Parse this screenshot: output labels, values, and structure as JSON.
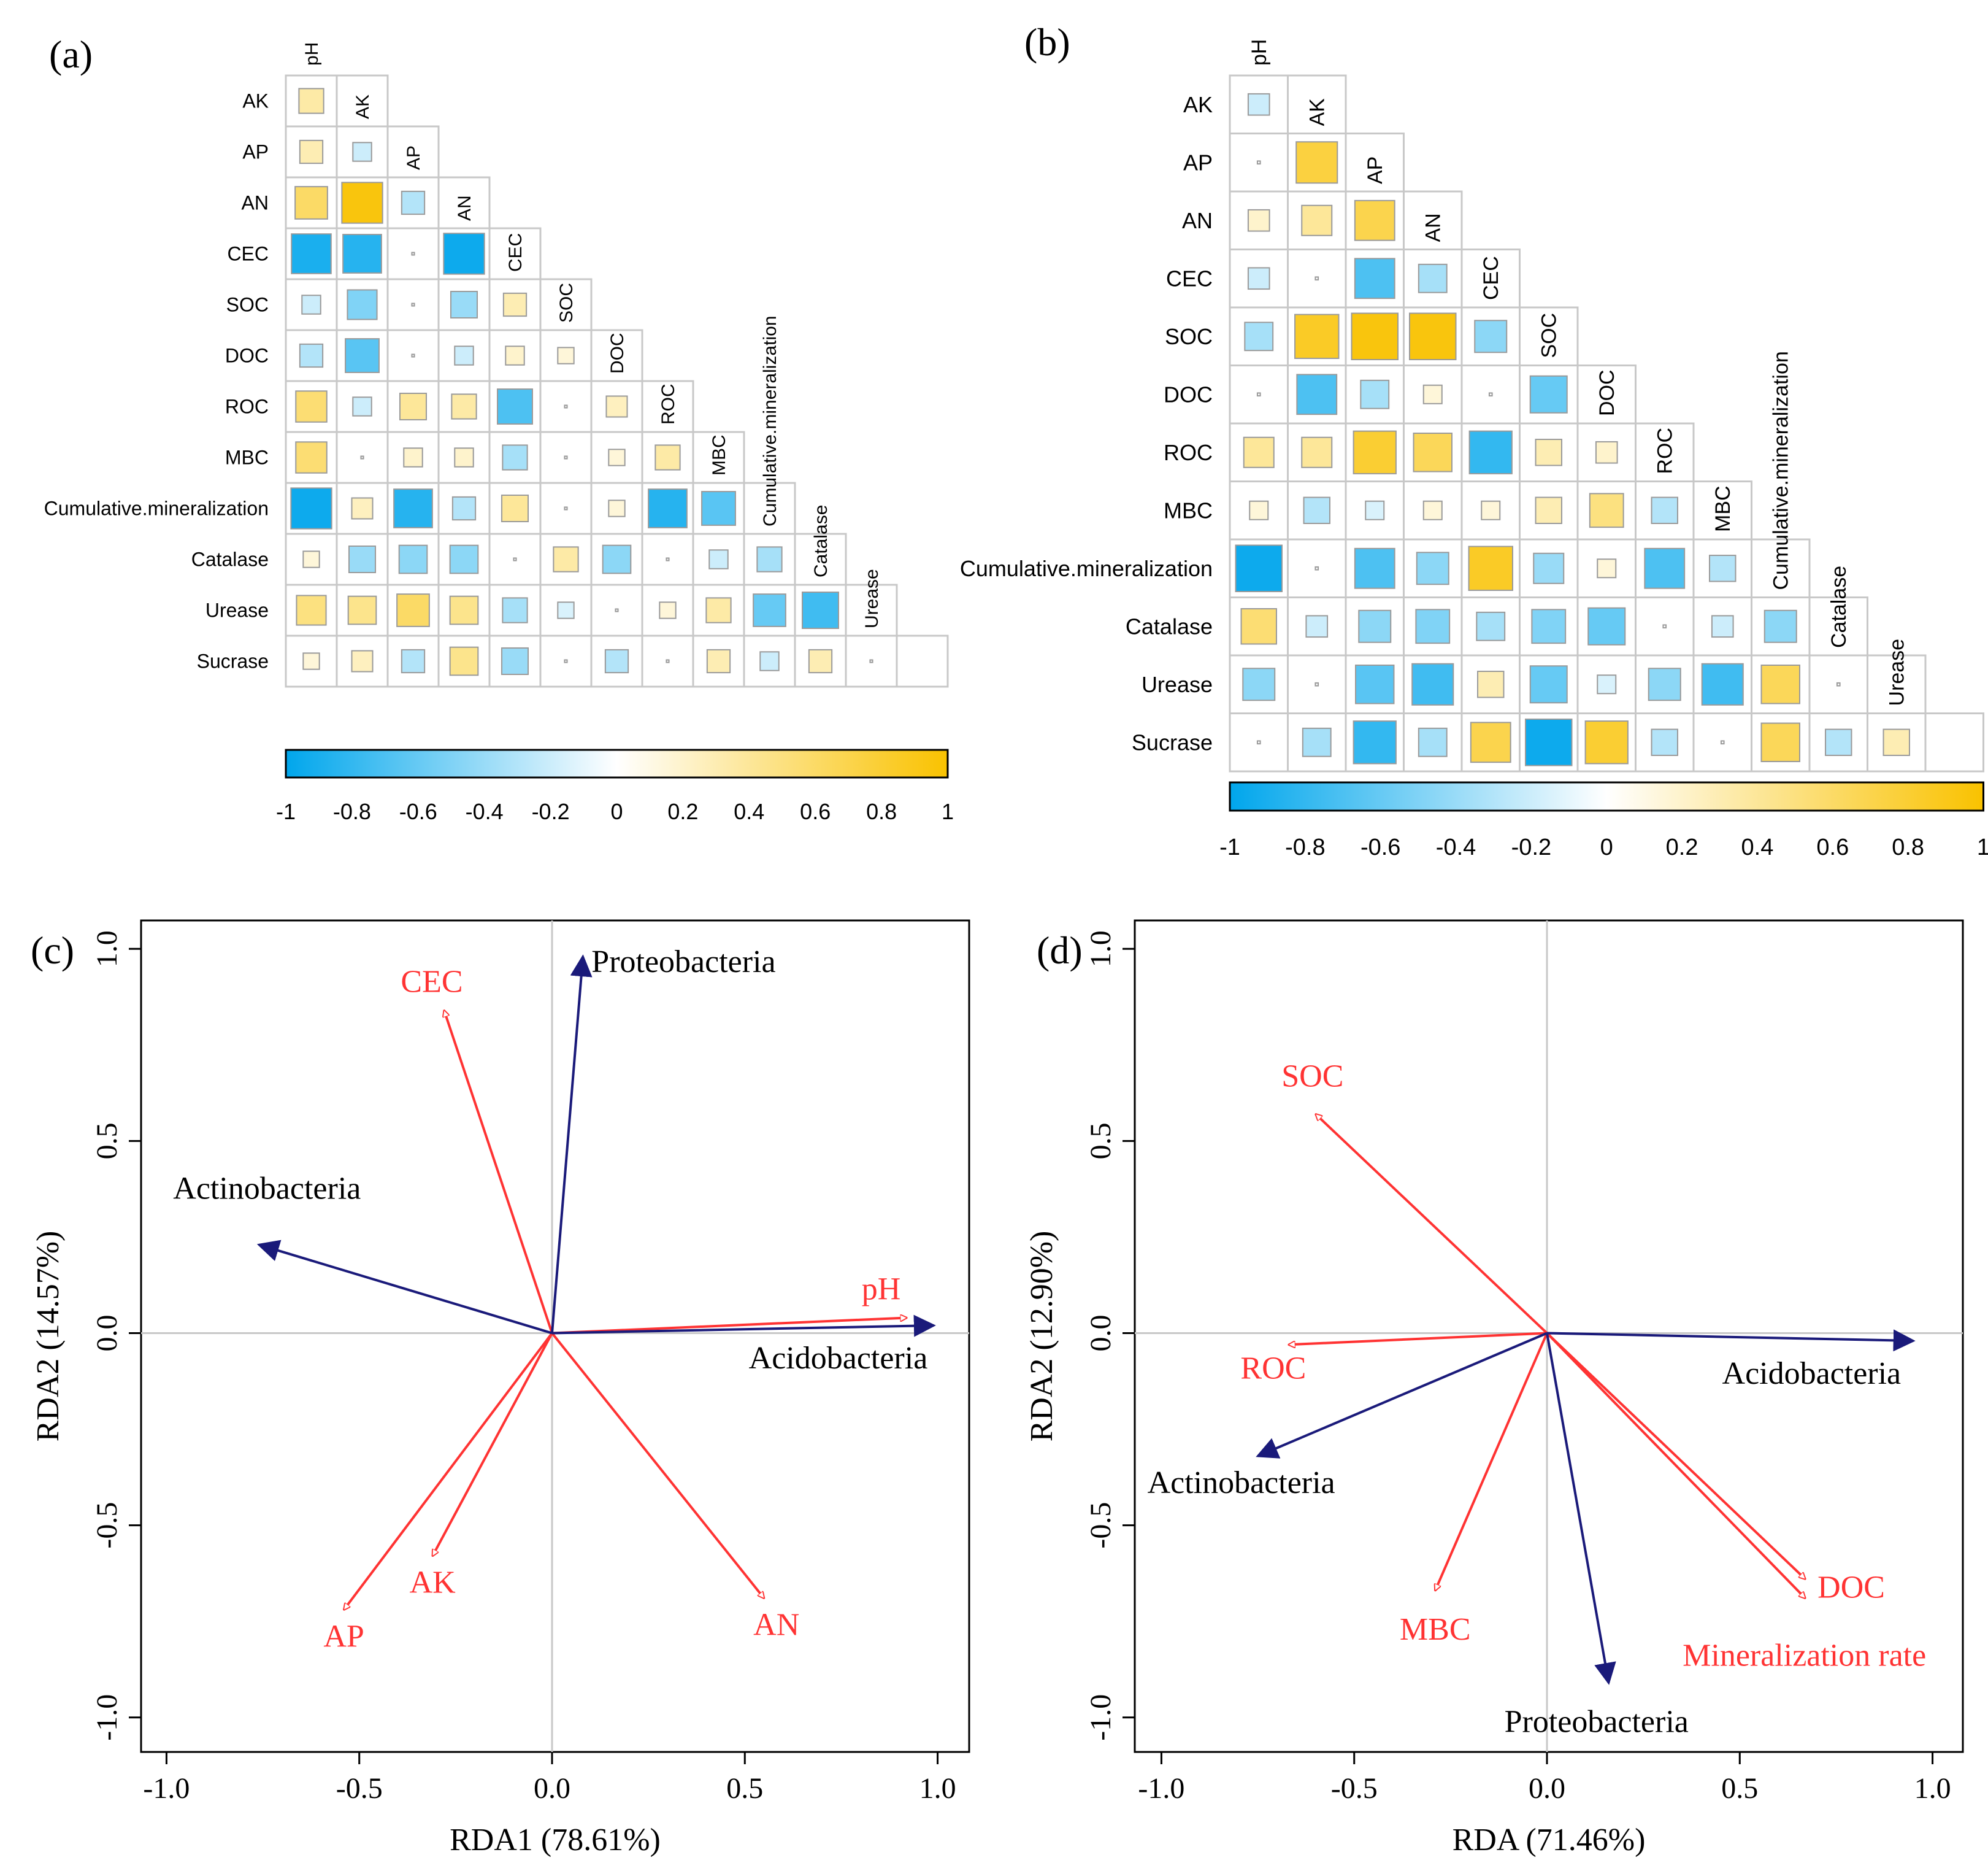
{
  "panel_labels": [
    "(a)",
    "(b)",
    "(c)",
    "(d)"
  ],
  "colors": {
    "negative": "#00a6ec",
    "neutral": "#ffffff",
    "positive": "#f9c200",
    "env_arrow": "#ff3333",
    "species_arrow": "#1a1a7a",
    "grid": "#c8c8c8"
  },
  "chart_data": [
    {
      "type": "heatmap",
      "panel": "(a)",
      "title": "",
      "variables": [
        "pH",
        "AK",
        "AP",
        "AN",
        "CEC",
        "SOC",
        "DOC",
        "ROC",
        "MBC",
        "Cumulative.mineralization",
        "Catalase",
        "Urease",
        "Sucrase"
      ],
      "column_labels": [
        "pH",
        "AK",
        "AP",
        "AN",
        "CEC",
        "SOC",
        "DOC",
        "ROC",
        "MBC",
        "Cumulative.mineralization",
        "Catalase",
        "Urease"
      ],
      "correlations_lower": [
        [
          0.35
        ],
        [
          0.3,
          -0.2
        ],
        [
          0.6,
          0.95,
          -0.3
        ],
        [
          -0.9,
          -0.85,
          0.0,
          -0.95
        ],
        [
          -0.2,
          -0.5,
          0.0,
          -0.4,
          0.3
        ],
        [
          -0.3,
          -0.65,
          0.0,
          -0.2,
          0.2,
          0.15
        ],
        [
          0.55,
          -0.2,
          0.4,
          0.35,
          -0.7,
          0.0,
          0.25
        ],
        [
          0.55,
          0.0,
          0.2,
          0.2,
          -0.35,
          0.0,
          0.15,
          0.35
        ],
        [
          -0.95,
          0.25,
          -0.85,
          -0.3,
          0.4,
          0.0,
          0.15,
          -0.85,
          -0.65
        ],
        [
          0.15,
          -0.4,
          -0.45,
          -0.45,
          0.0,
          0.35,
          -0.45,
          0.0,
          -0.2,
          -0.35
        ],
        [
          0.5,
          0.45,
          0.6,
          0.45,
          -0.35,
          -0.15,
          0.0,
          0.15,
          0.35,
          -0.6,
          -0.75
        ],
        [
          0.15,
          0.25,
          -0.3,
          0.45,
          -0.4,
          0.0,
          -0.3,
          0.0,
          0.3,
          -0.2,
          0.3,
          0.0
        ]
      ],
      "colorbar": {
        "ticks": [
          "-1",
          "-0.8",
          "-0.6",
          "-0.4",
          "-0.2",
          "0",
          "0.2",
          "0.4",
          "0.6",
          "0.8",
          "1"
        ],
        "range": [
          -1,
          1
        ]
      }
    },
    {
      "type": "heatmap",
      "panel": "(b)",
      "title": "",
      "variables": [
        "pH",
        "AK",
        "AP",
        "AN",
        "CEC",
        "SOC",
        "DOC",
        "ROC",
        "MBC",
        "Cumulative.mineralization",
        "Catalase",
        "Urease",
        "Sucrase"
      ],
      "column_labels": [
        "pH",
        "AK",
        "AP",
        "AN",
        "CEC",
        "SOC",
        "DOC",
        "ROC",
        "MBC",
        "Cumulative.mineralization",
        "Catalase",
        "Urease"
      ],
      "correlations_lower": [
        [
          -0.2
        ],
        [
          0.0,
          0.75
        ],
        [
          0.2,
          0.4,
          0.7
        ],
        [
          -0.2,
          0.0,
          -0.7,
          -0.35
        ],
        [
          -0.35,
          0.85,
          0.95,
          0.95,
          -0.45
        ],
        [
          0.0,
          -0.7,
          -0.35,
          0.15,
          0.0,
          -0.6
        ],
        [
          0.4,
          0.4,
          0.8,
          0.65,
          -0.8,
          0.3,
          0.2
        ],
        [
          0.15,
          -0.3,
          -0.15,
          0.15,
          0.15,
          0.3,
          0.5,
          -0.3
        ],
        [
          -0.95,
          0.0,
          -0.7,
          -0.45,
          0.85,
          -0.4,
          0.15,
          -0.7,
          -0.3
        ],
        [
          0.55,
          -0.2,
          -0.45,
          -0.5,
          -0.35,
          -0.5,
          -0.6,
          0.0,
          -0.2,
          -0.45
        ],
        [
          -0.45,
          0.0,
          -0.65,
          -0.75,
          0.3,
          -0.6,
          -0.15,
          -0.45,
          -0.75,
          0.65,
          0.0
        ],
        [
          0.0,
          -0.35,
          -0.8,
          -0.35,
          0.7,
          -0.95,
          0.8,
          -0.3,
          0.0,
          0.65,
          -0.3,
          0.3
        ]
      ],
      "colorbar": {
        "ticks": [
          "-1",
          "-0.8",
          "-0.6",
          "-0.4",
          "-0.2",
          "0",
          "0.2",
          "0.4",
          "0.6",
          "0.8",
          "1"
        ],
        "range": [
          -1,
          1
        ]
      }
    },
    {
      "type": "scatter",
      "subtype": "rda_biplot",
      "panel": "(c)",
      "xlabel": "RDA1 (78.61%)",
      "ylabel": "RDA2 (14.57%)",
      "xlim": [
        -1.05,
        1.05
      ],
      "ylim": [
        -1.05,
        1.05
      ],
      "xticks": [
        "-1.0",
        "-0.5",
        "0.0",
        "0.5",
        "1.0"
      ],
      "yticks": [
        "-1.0",
        "-0.5",
        "0.0",
        "0.5",
        "1.0"
      ],
      "environment_vectors": [
        {
          "name": "CEC",
          "x": -0.28,
          "y": 0.84
        },
        {
          "name": "pH",
          "x": 0.92,
          "y": 0.04
        },
        {
          "name": "AK",
          "x": -0.31,
          "y": -0.58
        },
        {
          "name": "AP",
          "x": -0.54,
          "y": -0.72
        },
        {
          "name": "AN",
          "x": 0.55,
          "y": -0.69
        }
      ],
      "species_vectors": [
        {
          "name": "Proteobacteria",
          "x": 0.08,
          "y": 0.98
        },
        {
          "name": "Actinobacteria",
          "x": -0.76,
          "y": 0.23
        },
        {
          "name": "Acidobacteria",
          "x": 0.99,
          "y": 0.02
        }
      ]
    },
    {
      "type": "scatter",
      "subtype": "rda_biplot",
      "panel": "(d)",
      "xlabel": "RDA (71.46%)",
      "ylabel": "RDA2 (12.90%)",
      "xlim": [
        -1.05,
        1.05
      ],
      "ylim": [
        -1.05,
        1.05
      ],
      "xticks": [
        "-1.0",
        "-0.5",
        "0.0",
        "0.5",
        "1.0"
      ],
      "yticks": [
        "-1.0",
        "-0.5",
        "0.0",
        "0.5",
        "1.0"
      ],
      "environment_vectors": [
        {
          "name": "SOC",
          "x": -0.6,
          "y": 0.57
        },
        {
          "name": "ROC",
          "x": -0.67,
          "y": -0.03
        },
        {
          "name": "MBC",
          "x": -0.29,
          "y": -0.67
        },
        {
          "name": "DOC",
          "x": 0.67,
          "y": -0.64
        },
        {
          "name": "Mineralization rate",
          "x": 0.67,
          "y": -0.69
        }
      ],
      "species_vectors": [
        {
          "name": "Acidobacteria",
          "x": 0.95,
          "y": -0.02
        },
        {
          "name": "Actinobacteria",
          "x": -0.75,
          "y": -0.32
        },
        {
          "name": "Proteobacteria",
          "x": 0.16,
          "y": -0.91
        }
      ]
    }
  ]
}
